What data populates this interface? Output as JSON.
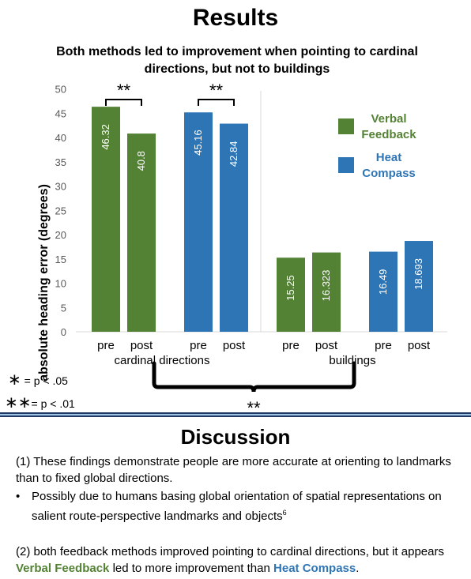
{
  "results": {
    "title": "Results",
    "subtitle": "Both methods led to improvement when pointing to cardinal directions, but not to buildings"
  },
  "legend": [
    {
      "name": "Verbal Feedback",
      "color": "#548235"
    },
    {
      "name": "Heat Compass",
      "color": "#2e75b6"
    }
  ],
  "chart_data": {
    "type": "bar",
    "ylabel": "absolute heading error (degrees)",
    "ylim": [
      0,
      50
    ],
    "yticks": [
      0,
      5,
      10,
      15,
      20,
      25,
      30,
      35,
      40,
      45,
      50
    ],
    "groups": [
      "cardinal directions",
      "buildings"
    ],
    "bars": [
      {
        "group": "cardinal directions",
        "series": "Verbal Feedback",
        "category": "pre",
        "value": 46.32,
        "label": "46.32"
      },
      {
        "group": "cardinal directions",
        "series": "Verbal Feedback",
        "category": "post",
        "value": 40.8,
        "label": "40.8"
      },
      {
        "group": "cardinal directions",
        "series": "Heat Compass",
        "category": "pre",
        "value": 45.16,
        "label": "45.16"
      },
      {
        "group": "cardinal directions",
        "series": "Heat Compass",
        "category": "post",
        "value": 42.84,
        "label": "42.84"
      },
      {
        "group": "buildings",
        "series": "Verbal Feedback",
        "category": "pre",
        "value": 15.25,
        "label": "15.25"
      },
      {
        "group": "buildings",
        "series": "Verbal Feedback",
        "category": "post",
        "value": 16.323,
        "label": "16.323"
      },
      {
        "group": "buildings",
        "series": "Heat Compass",
        "category": "pre",
        "value": 16.49,
        "label": "16.49"
      },
      {
        "group": "buildings",
        "series": "Heat Compass",
        "category": "post",
        "value": 18.693,
        "label": "18.693"
      }
    ],
    "annotations": {
      "significance_marker": "**",
      "bracket_between_groups": "**"
    },
    "grid": false,
    "legend_position": "right"
  },
  "significance_key": [
    {
      "symbol": "∗",
      "text": " = p < .05"
    },
    {
      "symbol": "∗∗",
      "text": "= p < .01"
    }
  ],
  "discussion": {
    "title": "Discussion",
    "point1": "(1) These findings demonstrate people are more accurate at orienting to landmarks than to fixed global directions.",
    "bullet_symbol": "•",
    "bullet": "Possibly due to humans basing global orientation of spatial representations on salient route-perspective landmarks and objects",
    "bullet_sup": "6",
    "point2_start": "(2) both feedback methods improved pointing to cardinal directions, but it appears ",
    "point2_verbal": "Verbal Feedback",
    "point2_mid": " led to more improvement than ",
    "point2_heat": "Heat Compass",
    "point2_end": "."
  }
}
